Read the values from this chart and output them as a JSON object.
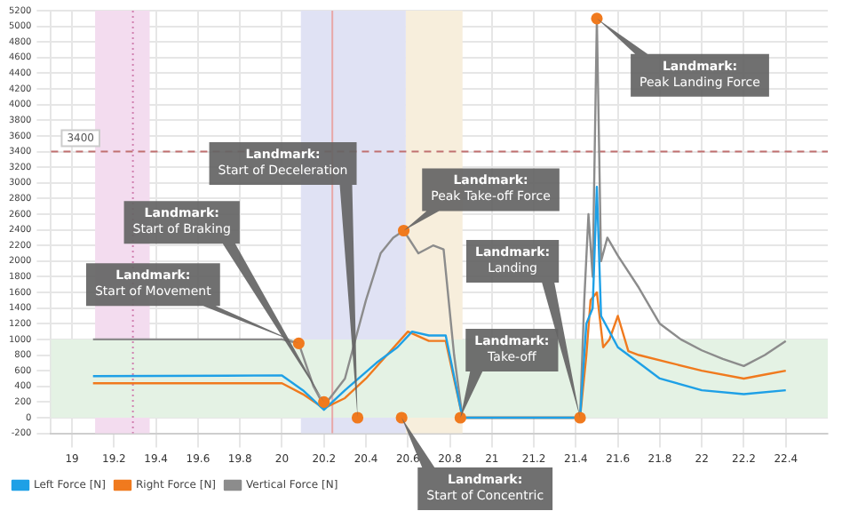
{
  "chart_data": {
    "type": "line",
    "xlim": [
      18.9,
      22.6
    ],
    "xticks": [
      19,
      19.2,
      19.4,
      19.6,
      19.8,
      20,
      20.2,
      20.4,
      20.6,
      20.8,
      21,
      21.2,
      21.4,
      21.6,
      21.8,
      22,
      22.2,
      22.4
    ],
    "ylim": [
      -200,
      5200
    ],
    "yticks": [
      -200,
      0,
      200,
      400,
      600,
      800,
      1000,
      1200,
      1400,
      1600,
      1800,
      2000,
      2200,
      2400,
      2600,
      2800,
      3000,
      3200,
      3400,
      3600,
      3800,
      4000,
      4200,
      4400,
      4600,
      4800,
      5000,
      5200
    ],
    "grid": true,
    "legend": "bottom",
    "marker": "none",
    "line_style": "solid",
    "series": [
      {
        "name": "Left Force [N]",
        "color": "#1ea0e6",
        "x": [
          19.1,
          20.0,
          20.1,
          20.2,
          20.3,
          20.45,
          20.55,
          20.62,
          20.7,
          20.78,
          20.86,
          21.42,
          21.45,
          21.48,
          21.5,
          21.52,
          21.56,
          21.6,
          21.7,
          21.8,
          22.0,
          22.2,
          22.4
        ],
        "values": [
          530,
          540,
          350,
          100,
          350,
          700,
          900,
          1100,
          1050,
          1050,
          0,
          0,
          1200,
          1400,
          2950,
          1300,
          1100,
          900,
          700,
          500,
          350,
          300,
          350
        ]
      },
      {
        "name": "Right Force [N]",
        "color": "#f07a1e",
        "x": [
          19.1,
          20.0,
          20.1,
          20.2,
          20.3,
          20.4,
          20.5,
          20.6,
          20.7,
          20.78,
          20.86,
          21.42,
          21.45,
          21.47,
          21.5,
          21.53,
          21.56,
          21.6,
          21.65,
          21.7,
          21.85,
          22.0,
          22.2,
          22.3,
          22.4
        ],
        "values": [
          440,
          440,
          300,
          120,
          250,
          500,
          800,
          1100,
          980,
          980,
          0,
          0,
          800,
          1500,
          1600,
          900,
          1000,
          1300,
          850,
          800,
          700,
          600,
          500,
          550,
          600
        ]
      },
      {
        "name": "Vertical Force [N]",
        "color": "#8c8c8c",
        "x": [
          19.1,
          20.0,
          20.08,
          20.15,
          20.2,
          20.3,
          20.4,
          20.47,
          20.53,
          20.58,
          20.65,
          20.72,
          20.77,
          20.82,
          20.86,
          21.4,
          21.42,
          21.44,
          21.46,
          21.48,
          21.5,
          21.52,
          21.55,
          21.6,
          21.7,
          21.8,
          21.9,
          22.0,
          22.1,
          22.2,
          22.3,
          22.4
        ],
        "values": [
          1000,
          1000,
          950,
          400,
          150,
          500,
          1500,
          2100,
          2300,
          2390,
          2100,
          2200,
          2150,
          800,
          0,
          0,
          0,
          1500,
          2600,
          1800,
          5100,
          2000,
          2300,
          2070,
          1660,
          1200,
          1000,
          860,
          750,
          660,
          800,
          980
        ]
      },
      {
        "type": "scatter",
        "marker": "circle",
        "color": "#f07a1e",
        "x": [
          20.08,
          20.2,
          20.36,
          20.57,
          20.58,
          20.85,
          21.42,
          21.5
        ],
        "values": [
          950,
          200,
          0,
          0,
          2390,
          0,
          0,
          5100
        ]
      }
    ],
    "ref_lines": [
      {
        "axis": "y",
        "value": 3400,
        "label": "3400",
        "color": "#c07070",
        "line_style": "dashed"
      },
      {
        "axis": "x",
        "value": 19.29,
        "color": "#d080b0",
        "line_style": "dotted"
      },
      {
        "axis": "x",
        "value": 20.24,
        "color": "#e8a8a8",
        "line_style": "solid"
      }
    ],
    "bands": [
      {
        "axis": "x",
        "from": 19.11,
        "to": 19.37,
        "color": "#f3dcef"
      },
      {
        "axis": "x",
        "from": 20.09,
        "to": 20.59,
        "color": "#e0e2f4"
      },
      {
        "axis": "x",
        "from": 20.59,
        "to": 20.86,
        "color": "#f7eedc"
      },
      {
        "axis": "y",
        "from": 0,
        "to": 1000,
        "color": "#e4f2e4"
      }
    ],
    "annotations": [
      {
        "text": "Landmark:\nStart of Movement",
        "x": 20.08,
        "y": 950
      },
      "Landmark:\nStart of Braking",
      {
        "text": "Landmark:\nStart of Deceleration",
        "x": 20.36,
        "y": 0
      },
      "Landmark:\nPeak Take-off Force",
      {
        "text": "Landmark:\nTake-off",
        "x": 20.85,
        "y": 0
      },
      "Landmark:\nStart of Concentric",
      "Landmark:\nPeak Landing Force",
      {
        "text": "Landmark:\nLanding",
        "x": 21.42,
        "y": 0
      }
    ]
  }
}
